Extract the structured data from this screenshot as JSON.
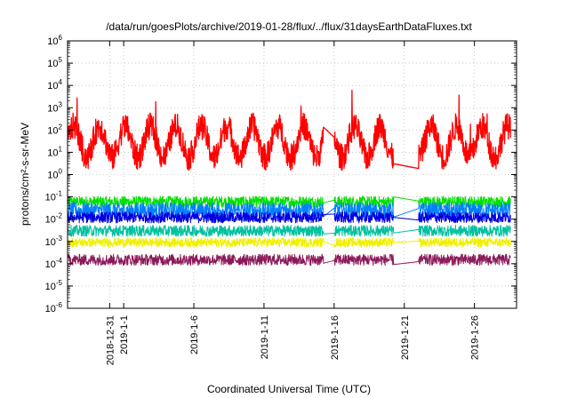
{
  "chart_data": {
    "type": "line",
    "title": "/data/run/goesPlots/archive/2019-01-28/flux/../flux/31daysEarthDataFluxes.txt",
    "xlabel": "Coordinated Universal Time (UTC)",
    "ylabel": "protons/cm²-s-sr-MeV",
    "y_scale": "log",
    "ylim": [
      1e-06,
      1000000.0
    ],
    "xlim": [
      "2018-12-28",
      "2019-01-29"
    ],
    "y_ticks": [
      {
        "base": "10",
        "exp": "-6",
        "value": 1e-06
      },
      {
        "base": "10",
        "exp": "-5",
        "value": 1e-05
      },
      {
        "base": "10",
        "exp": "-4",
        "value": 0.0001
      },
      {
        "base": "10",
        "exp": "-3",
        "value": 0.001
      },
      {
        "base": "10",
        "exp": "-2",
        "value": 0.01
      },
      {
        "base": "10",
        "exp": "-1",
        "value": 0.1
      },
      {
        "base": "10",
        "exp": "0",
        "value": 1
      },
      {
        "base": "10",
        "exp": "1",
        "value": 10
      },
      {
        "base": "10",
        "exp": "2",
        "value": 100
      },
      {
        "base": "10",
        "exp": "3",
        "value": 1000
      },
      {
        "base": "10",
        "exp": "4",
        "value": 10000
      },
      {
        "base": "10",
        "exp": "5",
        "value": 100000
      },
      {
        "base": "10",
        "exp": "6",
        "value": 1000000
      }
    ],
    "x_ticks": [
      {
        "label": "2018-12-31",
        "date": "2018-12-31"
      },
      {
        "label": "2019-1-1",
        "date": "2019-01-01"
      },
      {
        "label": "2019-1-6",
        "date": "2019-01-06"
      },
      {
        "label": "2019-1-11",
        "date": "2019-01-11"
      },
      {
        "label": "2019-1-16",
        "date": "2019-01-16"
      },
      {
        "label": "2019-1-21",
        "date": "2019-01-21"
      },
      {
        "label": "2019-1-26",
        "date": "2019-01-26"
      }
    ],
    "grid": true,
    "data_gaps": [
      [
        "2019-01-15",
        "2019-01-16"
      ],
      [
        "2019-01-20",
        "2019-01-22"
      ]
    ],
    "series": [
      {
        "color": "#ff0000",
        "base": 30,
        "spread": 1.0,
        "daily_cycle": true
      },
      {
        "color": "#00e000",
        "base": 0.06,
        "spread": 0.25
      },
      {
        "color": "#0080ff",
        "base": 0.025,
        "spread": 0.35
      },
      {
        "color": "#0000dd",
        "base": 0.012,
        "spread": 0.25
      },
      {
        "color": "#00c0a0",
        "base": 0.003,
        "spread": 0.25
      },
      {
        "color": "#f0f000",
        "base": 0.0009,
        "spread": 0.2
      },
      {
        "color": "#8b1a5a",
        "base": 0.00015,
        "spread": 0.25
      }
    ]
  }
}
